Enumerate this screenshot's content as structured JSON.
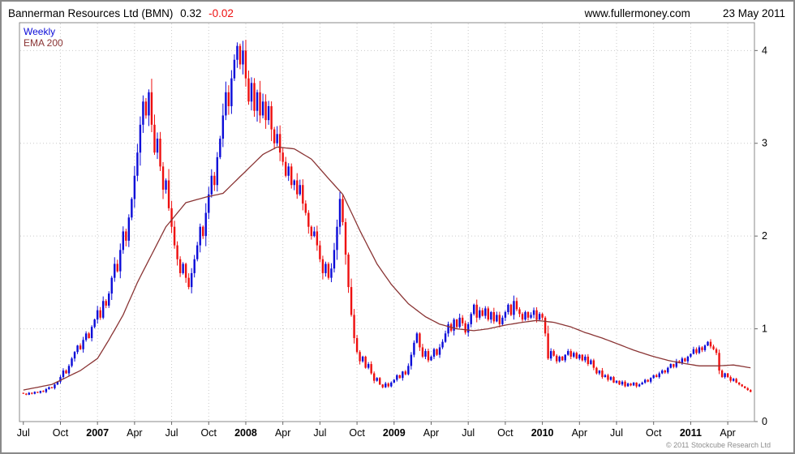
{
  "header": {
    "company": "Bannerman Resources Ltd (BMN)",
    "price": "0.32",
    "change": "-0.02",
    "website": "www.fullermoney.com",
    "date": "23 May 2011"
  },
  "legend": {
    "series": "Weekly",
    "overlay": "EMA 200"
  },
  "footer": {
    "copyright": "© 2011 Stockcube Research Ltd"
  },
  "chart_data": {
    "type": "candlestick",
    "title": "Bannerman Resources Ltd (BMN) weekly candles with EMA 200 overlay",
    "xlabel": "",
    "ylabel": "",
    "ylim": [
      0,
      4.3
    ],
    "yticks": [
      0,
      1,
      2,
      3,
      4
    ],
    "grid": true,
    "legend_position": "top-left",
    "xticks": [
      {
        "label": "Jul",
        "week": 0,
        "bold": false
      },
      {
        "label": "Oct",
        "week": 13,
        "bold": false
      },
      {
        "label": "2007",
        "week": 26,
        "bold": true
      },
      {
        "label": "Apr",
        "week": 39,
        "bold": false
      },
      {
        "label": "Jul",
        "week": 52,
        "bold": false
      },
      {
        "label": "Oct",
        "week": 65,
        "bold": false
      },
      {
        "label": "2008",
        "week": 78,
        "bold": true
      },
      {
        "label": "Apr",
        "week": 91,
        "bold": false
      },
      {
        "label": "Jul",
        "week": 104,
        "bold": false
      },
      {
        "label": "Oct",
        "week": 117,
        "bold": false
      },
      {
        "label": "2009",
        "week": 130,
        "bold": true
      },
      {
        "label": "Apr",
        "week": 143,
        "bold": false
      },
      {
        "label": "Jul",
        "week": 156,
        "bold": false
      },
      {
        "label": "Oct",
        "week": 169,
        "bold": false
      },
      {
        "label": "2010",
        "week": 182,
        "bold": true
      },
      {
        "label": "Apr",
        "week": 195,
        "bold": false
      },
      {
        "label": "Jul",
        "week": 208,
        "bold": false
      },
      {
        "label": "Oct",
        "week": 221,
        "bold": false
      },
      {
        "label": "2011",
        "week": 234,
        "bold": true
      },
      {
        "label": "Apr",
        "week": 247,
        "bold": false
      }
    ],
    "first_open": 0.31,
    "closes": [
      0.3,
      0.29,
      0.31,
      0.3,
      0.32,
      0.31,
      0.33,
      0.32,
      0.35,
      0.37,
      0.36,
      0.4,
      0.43,
      0.48,
      0.55,
      0.52,
      0.6,
      0.68,
      0.75,
      0.82,
      0.78,
      0.88,
      0.95,
      0.9,
      1.02,
      1.1,
      1.2,
      1.12,
      1.3,
      1.25,
      1.38,
      1.55,
      1.7,
      1.62,
      1.85,
      2.05,
      1.95,
      2.2,
      2.4,
      2.65,
      2.9,
      3.2,
      3.45,
      3.3,
      3.55,
      3.2,
      2.9,
      3.05,
      2.75,
      2.5,
      2.6,
      2.3,
      2.1,
      1.9,
      1.75,
      1.6,
      1.7,
      1.55,
      1.45,
      1.6,
      1.75,
      1.9,
      2.1,
      2.0,
      2.25,
      2.45,
      2.65,
      2.55,
      2.85,
      3.05,
      3.3,
      3.55,
      3.4,
      3.7,
      3.9,
      4.05,
      3.85,
      4.0,
      3.7,
      3.45,
      3.65,
      3.35,
      3.55,
      3.3,
      3.45,
      3.25,
      3.4,
      3.15,
      3.0,
      3.1,
      2.9,
      2.8,
      2.65,
      2.75,
      2.55,
      2.6,
      2.45,
      2.55,
      2.35,
      2.25,
      2.1,
      2.0,
      2.05,
      1.9,
      1.75,
      1.6,
      1.7,
      1.55,
      1.65,
      1.85,
      2.1,
      2.4,
      2.15,
      1.8,
      1.45,
      1.15,
      0.9,
      0.75,
      0.65,
      0.7,
      0.58,
      0.62,
      0.52,
      0.44,
      0.47,
      0.4,
      0.37,
      0.41,
      0.38,
      0.42,
      0.45,
      0.5,
      0.47,
      0.54,
      0.51,
      0.6,
      0.72,
      0.85,
      0.95,
      0.8,
      0.7,
      0.76,
      0.66,
      0.7,
      0.78,
      0.72,
      0.8,
      0.86,
      0.95,
      1.05,
      0.98,
      1.1,
      1.02,
      1.12,
      1.06,
      0.96,
      1.05,
      1.16,
      1.26,
      1.12,
      1.2,
      1.14,
      1.22,
      1.1,
      1.18,
      1.08,
      1.15,
      1.05,
      1.12,
      1.18,
      1.26,
      1.15,
      1.3,
      1.21,
      1.16,
      1.1,
      1.18,
      1.12,
      1.15,
      1.2,
      1.1,
      1.16,
      1.12,
      0.95,
      0.68,
      0.76,
      0.71,
      0.65,
      0.7,
      0.66,
      0.72,
      0.76,
      0.7,
      0.74,
      0.68,
      0.72,
      0.66,
      0.7,
      0.62,
      0.66,
      0.58,
      0.52,
      0.55,
      0.48,
      0.5,
      0.45,
      0.48,
      0.42,
      0.44,
      0.4,
      0.43,
      0.38,
      0.41,
      0.39,
      0.42,
      0.38,
      0.4,
      0.42,
      0.45,
      0.43,
      0.47,
      0.5,
      0.48,
      0.52,
      0.55,
      0.53,
      0.58,
      0.62,
      0.59,
      0.65,
      0.63,
      0.68,
      0.65,
      0.7,
      0.73,
      0.78,
      0.74,
      0.8,
      0.77,
      0.82,
      0.86,
      0.81,
      0.78,
      0.74,
      0.55,
      0.48,
      0.52,
      0.48,
      0.44,
      0.46,
      0.42,
      0.4,
      0.38,
      0.36,
      0.34,
      0.32
    ],
    "ema_anchors": [
      [
        0,
        0.34
      ],
      [
        10,
        0.4
      ],
      [
        20,
        0.55
      ],
      [
        26,
        0.68
      ],
      [
        30,
        0.88
      ],
      [
        35,
        1.15
      ],
      [
        40,
        1.5
      ],
      [
        45,
        1.8
      ],
      [
        50,
        2.1
      ],
      [
        57,
        2.36
      ],
      [
        64,
        2.42
      ],
      [
        70,
        2.46
      ],
      [
        78,
        2.7
      ],
      [
        84,
        2.88
      ],
      [
        89,
        2.96
      ],
      [
        95,
        2.94
      ],
      [
        101,
        2.83
      ],
      [
        107,
        2.62
      ],
      [
        112,
        2.45
      ],
      [
        118,
        2.06
      ],
      [
        124,
        1.7
      ],
      [
        129,
        1.48
      ],
      [
        135,
        1.27
      ],
      [
        141,
        1.13
      ],
      [
        146,
        1.05
      ],
      [
        152,
        1.0
      ],
      [
        158,
        0.98
      ],
      [
        163,
        1.0
      ],
      [
        169,
        1.04
      ],
      [
        175,
        1.07
      ],
      [
        180,
        1.09
      ],
      [
        186,
        1.07
      ],
      [
        192,
        1.02
      ],
      [
        197,
        0.96
      ],
      [
        203,
        0.9
      ],
      [
        209,
        0.83
      ],
      [
        214,
        0.77
      ],
      [
        220,
        0.71
      ],
      [
        226,
        0.66
      ],
      [
        231,
        0.63
      ],
      [
        237,
        0.6
      ],
      [
        243,
        0.6
      ],
      [
        249,
        0.61
      ],
      [
        255,
        0.58
      ]
    ],
    "colors": {
      "up": "#0b0bd8",
      "down": "#ee0f0f",
      "ema": "#8a3434",
      "grid": "#c9c9c9",
      "axis": "#666666",
      "text": "#000000"
    }
  }
}
